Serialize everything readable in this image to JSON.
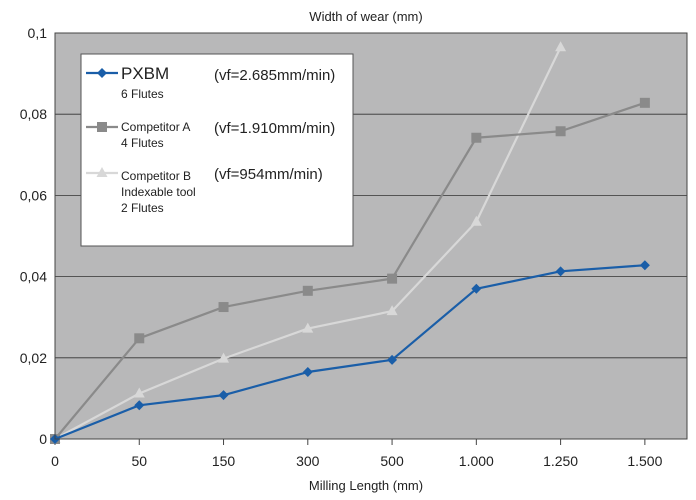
{
  "chart_data": {
    "type": "line",
    "title": "Width of wear (mm)",
    "xlabel": "Milling Length (mm)",
    "ylabel": "",
    "categories": [
      "0",
      "50",
      "150",
      "300",
      "500",
      "1.000",
      "1.250",
      "1.500"
    ],
    "y_tick_labels": [
      "0",
      "0,02",
      "0,04",
      "0,06",
      "0,08",
      "0,1"
    ],
    "ylim": [
      0,
      0.1
    ],
    "grid": true,
    "legend_position": "top-left",
    "colors": {
      "plot_bg": "#b8b8b9",
      "pxbm": "#1a5ea8",
      "competitor_a": "#8a8a8a",
      "competitor_b": "#d8d8d8"
    },
    "series": [
      {
        "key": "pxbm",
        "name": "PXBM",
        "detail": [
          "6 Flutes"
        ],
        "speed": "(vf=2.685mm/min)",
        "marker": "diamond",
        "values": [
          0,
          0.0083,
          0.0108,
          0.0165,
          0.0195,
          0.037,
          0.0413,
          0.0428
        ]
      },
      {
        "key": "competitor_a",
        "name": "Competitor A",
        "detail": [
          "4 Flutes"
        ],
        "speed": "(vf=1.910mm/min)",
        "marker": "square",
        "values": [
          0,
          0.0248,
          0.0325,
          0.0365,
          0.0395,
          0.0742,
          0.0758,
          0.0828
        ]
      },
      {
        "key": "competitor_b",
        "name": "Competitor B",
        "detail": [
          "Indexable tool",
          "2 Flutes"
        ],
        "speed": "(vf=954mm/min)",
        "marker": "triangle",
        "values": [
          0,
          0.0112,
          0.0198,
          0.0272,
          0.0315,
          0.0535,
          0.0965,
          null
        ]
      }
    ]
  }
}
